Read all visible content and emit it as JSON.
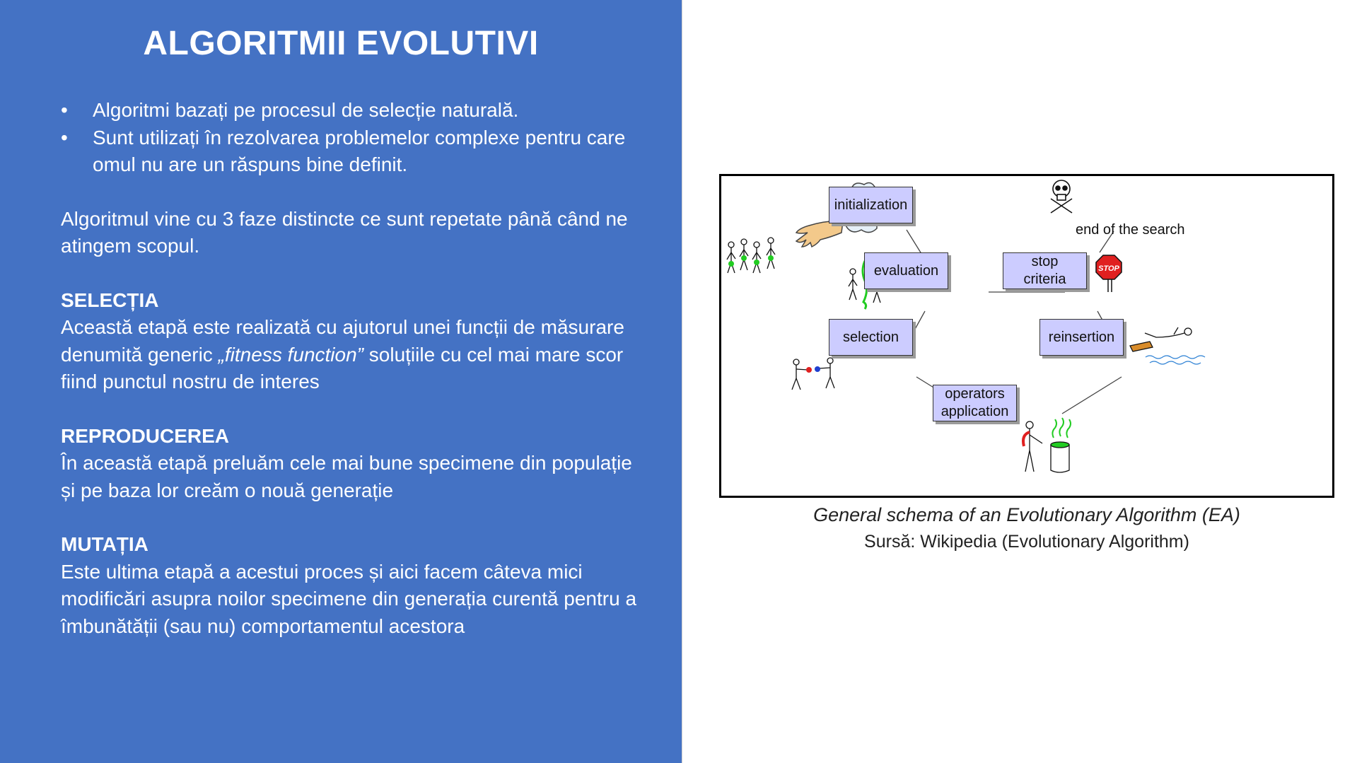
{
  "slide": {
    "title": "ALGORITMII EVOLUTIVI",
    "bullets": [
      "Algoritmi bazați pe procesul de selecție naturală.",
      "Sunt utilizați în rezolvarea problemelor complexe pentru care omul nu are un răspuns bine definit."
    ],
    "bullet_symbol": "•",
    "intro": "Algoritmul vine cu 3 faze distincte ce sunt repetate până când ne atingem scopul.",
    "selection": {
      "heading": "SELECȚIA",
      "text_before": "Această etapă este realizată cu ajutorul unei funcții de măsurare denumită generic ",
      "text_italic": "„fitness function”",
      "text_after": " soluțiile cu cel mai mare scor fiind punctul nostru de interes"
    },
    "reproduction": {
      "heading": "REPRODUCEREA",
      "text": "În această etapă preluăm cele mai bune specimene din populație și pe baza lor creăm o nouă generație"
    },
    "mutation": {
      "heading": "MUTAȚIA",
      "text": "Este ultima etapă a acestui proces și aici facem câteva mici modificări asupra noilor specimene din generația curentă pentru a îmbunătății (sau nu) comportamentul acestora"
    }
  },
  "diagram": {
    "nodes": {
      "initialization": "initialization",
      "evaluation": "evaluation",
      "stop_criteria_line1": "stop",
      "stop_criteria_line2": "criteria",
      "selection": "selection",
      "reinsertion": "reinsertion",
      "operators_line1": "operators",
      "operators_line2": "application"
    },
    "end_label": "end of the search",
    "stop_sign_text": "STOP",
    "caption": "General schema of an Evolutionary Algorithm (EA)",
    "source": "Sursă: Wikipedia (Evolutionary Algorithm)"
  },
  "colors": {
    "panel_bg": "#4472c4",
    "node_fill": "#ccccff",
    "stop_red": "#e02020",
    "mutation_green": "#22cc22"
  }
}
